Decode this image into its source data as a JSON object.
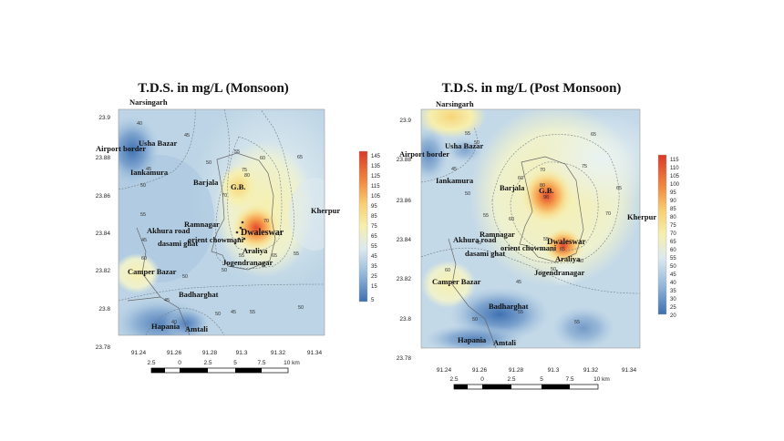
{
  "maps": [
    {
      "title": "T.D.S. in mg/L (Monsoon)",
      "x_ticks": [
        "91.24",
        "91.26",
        "91.28",
        "91.3",
        "91.32",
        "91.34"
      ],
      "y_ticks": [
        "23.9",
        "23.88",
        "23.86",
        "23.84",
        "23.82",
        "23.8",
        "23.78"
      ],
      "legend": [
        "145",
        "135",
        "125",
        "115",
        "105",
        "95",
        "85",
        "75",
        "65",
        "55",
        "45",
        "35",
        "25",
        "15",
        "5"
      ],
      "scale_labels": [
        "2.5",
        "0",
        "2.5",
        "5",
        "7.5",
        "10 km"
      ],
      "places": [
        "Narsingarh",
        "Airport border",
        "Usha Bazar",
        "Iankamura",
        "Barjala",
        "G.B.",
        "Kherpur",
        "Ramnagar",
        "Akhura road",
        "dasami ghat",
        "orient chowmani",
        "Jogendranagar",
        "Araliya",
        "Camper Bazar",
        "Badharghat",
        "Hapania",
        "Amtali"
      ],
      "contours": [
        "40",
        "45",
        "45",
        "50",
        "55",
        "60",
        "65",
        "75",
        "70",
        "80",
        "50",
        "55",
        "45",
        "60",
        "70",
        "65",
        "50",
        "55",
        "50",
        "45",
        "40",
        "50",
        "45",
        "55",
        "50",
        "55"
      ]
    },
    {
      "title": "T.D.S. in mg/L (Post Monsoon)",
      "x_ticks": [
        "91.24",
        "91.26",
        "91.28",
        "91.3",
        "91.32",
        "91.34"
      ],
      "y_ticks": [
        "23.9",
        "23.88",
        "23.86",
        "23.84",
        "23.82",
        "23.8",
        "23.78"
      ],
      "legend": [
        "115",
        "110",
        "105",
        "100",
        "95",
        "90",
        "85",
        "80",
        "75",
        "70",
        "65",
        "60",
        "55",
        "50",
        "45",
        "40",
        "35",
        "30",
        "25",
        "20"
      ],
      "scale_labels": [
        "2.5",
        "0",
        "2.5",
        "5",
        "7.5",
        "10 km"
      ],
      "places": [
        "Narsingarh",
        "Airport border",
        "Usha Bazar",
        "Iankamura",
        "Barjala",
        "G.B.",
        "Kherpur",
        "Ramnagar",
        "Akhura road",
        "dasami ghat",
        "orient chowmani",
        "Jogendranagar",
        "Araliya",
        "Camper Bazar",
        "Badharghat",
        "Hapania",
        "Amtali"
      ],
      "contours": [
        "55",
        "50",
        "45",
        "65",
        "60",
        "70",
        "80",
        "90",
        "75",
        "70",
        "65",
        "60",
        "55",
        "50",
        "45",
        "60",
        "55",
        "50",
        "45",
        "55",
        "60",
        "65",
        "50",
        "55"
      ]
    }
  ],
  "colors": {
    "low": "#3d6fb0",
    "mid": "#e6f0f4",
    "yellow": "#f6efae",
    "high": "#d73a2a"
  }
}
